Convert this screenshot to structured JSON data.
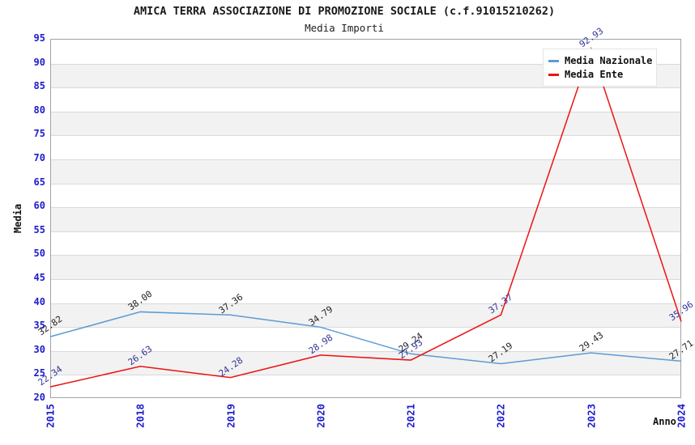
{
  "header": {
    "title": "AMICA TERRA ASSOCIAZIONE DI PROMOZIONE SOCIALE (c.f.91015210262)",
    "subtitle": "Media Importi"
  },
  "chart_data": {
    "type": "line",
    "x": [
      2015,
      2018,
      2019,
      2020,
      2021,
      2022,
      2023,
      2024
    ],
    "xlabel": "Anno",
    "ylabel": "Media",
    "ylim": [
      20,
      95
    ],
    "ytick_step": 5,
    "grid": "horizontal-with-alternating-bands",
    "legend_position": "top-right",
    "series": [
      {
        "name": "Media Nazionale",
        "color": "#5b9bd5",
        "label_color": "#222222",
        "values": [
          32.82,
          38.0,
          37.36,
          34.79,
          29.24,
          27.19,
          29.43,
          27.71
        ]
      },
      {
        "name": "Media Ente",
        "color": "#ee1111",
        "label_color": "#333399",
        "values": [
          22.34,
          26.63,
          24.28,
          28.98,
          27.93,
          37.37,
          92.93,
          35.96
        ]
      }
    ]
  },
  "colors": {
    "tick_label": "#1c1ccc",
    "gridline": "#d9d9d9",
    "band": "#f2f2f2",
    "plot_border": "#a3a3a3",
    "background": "#ffffff"
  }
}
